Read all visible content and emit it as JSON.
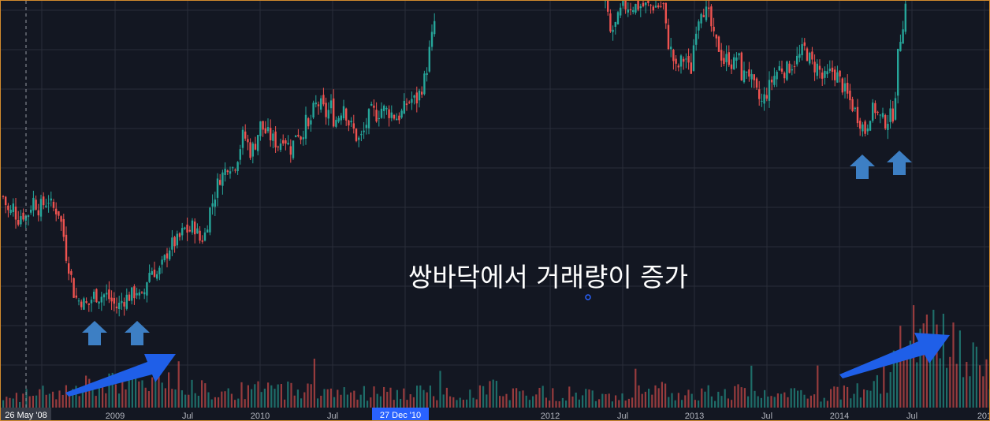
{
  "colors": {
    "background": "#131722",
    "grid": "#2a2e39",
    "up": "#26a69a",
    "down": "#ef5350",
    "arrow_blue": "#3d7fc4",
    "trend_arrow": "#1f5fe8",
    "crosshair_label": "#2962ff",
    "border": "#d28a2e"
  },
  "annotation": {
    "text": "쌍바닥에서 거래량이 증가"
  },
  "crosshair": {
    "date_label": "27 Dec '10",
    "cursor_icon": "crosshair-cursor-icon"
  },
  "start_label": {
    "text": "26 May '08"
  },
  "icons": [
    "up-arrow-icon",
    "trend-arrow-icon"
  ],
  "chart_data": {
    "type": "candlestick",
    "title": "",
    "xlabel": "",
    "ylabel": "",
    "grid": true,
    "legend": "none",
    "x_tick_labels": [
      "2009",
      "Jul",
      "2010",
      "Jul",
      "2012",
      "Jul",
      "2013",
      "Jul",
      "2014",
      "Jul",
      "201"
    ],
    "x_start": "2008-05",
    "x_end": "2015-01",
    "close_path_weekly": [
      [
        0,
        48
      ],
      [
        8,
        40
      ],
      [
        13,
        44
      ],
      [
        18,
        38
      ],
      [
        24,
        41
      ],
      [
        30,
        39
      ],
      [
        38,
        47
      ],
      [
        45,
        43
      ],
      [
        52,
        45
      ],
      [
        58,
        47
      ],
      [
        62,
        43
      ],
      [
        70,
        42
      ],
      [
        76,
        33
      ],
      [
        80,
        23
      ],
      [
        86,
        14
      ],
      [
        90,
        6
      ],
      [
        95,
        3
      ],
      [
        98,
        4
      ],
      [
        103,
        2
      ],
      [
        108,
        1
      ],
      [
        112,
        4
      ],
      [
        116,
        6
      ],
      [
        122,
        5
      ],
      [
        130,
        6
      ],
      [
        135,
        4
      ],
      [
        140,
        2
      ],
      [
        145,
        0
      ],
      [
        150,
        3
      ],
      [
        158,
        5
      ],
      [
        165,
        6
      ],
      [
        170,
        8
      ],
      [
        174,
        3
      ],
      [
        178,
        5
      ],
      [
        184,
        15
      ],
      [
        190,
        17
      ],
      [
        196,
        14
      ],
      [
        204,
        20
      ],
      [
        210,
        26
      ],
      [
        216,
        28
      ],
      [
        222,
        29
      ],
      [
        230,
        34
      ],
      [
        236,
        33
      ],
      [
        242,
        36
      ],
      [
        250,
        29
      ],
      [
        256,
        32
      ],
      [
        262,
        42
      ],
      [
        268,
        48
      ],
      [
        274,
        56
      ],
      [
        280,
        58
      ],
      [
        286,
        63
      ],
      [
        292,
        60
      ],
      [
        298,
        66
      ],
      [
        304,
        74
      ],
      [
        308,
        73
      ],
      [
        314,
        67
      ],
      [
        320,
        71
      ],
      [
        326,
        79
      ],
      [
        332,
        76
      ],
      [
        338,
        74
      ],
      [
        344,
        72
      ],
      [
        350,
        70
      ],
      [
        356,
        75
      ],
      [
        360,
        71
      ],
      [
        366,
        68
      ],
      [
        372,
        77
      ],
      [
        378,
        74
      ],
      [
        384,
        80
      ],
      [
        388,
        76
      ],
      [
        392,
        84
      ],
      [
        398,
        88
      ],
      [
        404,
        87
      ],
      [
        410,
        83
      ],
      [
        416,
        87
      ],
      [
        420,
        80
      ],
      [
        426,
        83
      ],
      [
        432,
        88
      ],
      [
        438,
        80
      ],
      [
        444,
        77
      ],
      [
        450,
        72
      ],
      [
        456,
        74
      ],
      [
        462,
        81
      ],
      [
        468,
        85
      ],
      [
        474,
        83
      ],
      [
        480,
        86
      ],
      [
        486,
        85
      ],
      [
        492,
        84
      ],
      [
        500,
        82
      ],
      [
        506,
        84
      ],
      [
        512,
        88
      ],
      [
        518,
        90
      ],
      [
        524,
        89
      ],
      [
        530,
        94
      ],
      [
        536,
        100
      ],
      [
        540,
        109
      ],
      [
        546,
        120
      ],
      [
        550,
        130
      ]
    ],
    "close_path_weekly_end": [
      [
        764,
        132
      ],
      [
        770,
        118
      ],
      [
        778,
        122
      ],
      [
        786,
        130
      ],
      [
        838,
        130
      ],
      [
        842,
        116
      ],
      [
        848,
        110
      ],
      [
        854,
        102
      ],
      [
        860,
        106
      ],
      [
        866,
        108
      ],
      [
        872,
        100
      ],
      [
        878,
        120
      ],
      [
        886,
        130
      ],
      [
        896,
        125
      ],
      [
        902,
        115
      ],
      [
        908,
        112
      ],
      [
        914,
        106
      ],
      [
        920,
        108
      ],
      [
        926,
        104
      ],
      [
        932,
        110
      ],
      [
        938,
        98
      ],
      [
        944,
        104
      ],
      [
        950,
        97
      ],
      [
        956,
        92
      ],
      [
        962,
        88
      ],
      [
        968,
        92
      ],
      [
        974,
        97
      ],
      [
        980,
        101
      ],
      [
        986,
        104
      ],
      [
        992,
        102
      ],
      [
        998,
        104
      ],
      [
        1004,
        106
      ],
      [
        1010,
        108
      ],
      [
        1016,
        112
      ],
      [
        1022,
        108
      ],
      [
        1028,
        104
      ],
      [
        1034,
        104
      ],
      [
        1040,
        98
      ],
      [
        1046,
        100
      ],
      [
        1052,
        102
      ],
      [
        1058,
        100
      ],
      [
        1064,
        96
      ],
      [
        1070,
        92
      ],
      [
        1076,
        88
      ],
      [
        1082,
        84
      ],
      [
        1088,
        80
      ],
      [
        1094,
        76
      ],
      [
        1100,
        84
      ],
      [
        1106,
        86
      ],
      [
        1112,
        82
      ],
      [
        1118,
        80
      ],
      [
        1124,
        82
      ],
      [
        1130,
        84
      ],
      [
        1136,
        112
      ],
      [
        1140,
        120
      ],
      [
        1144,
        128
      ],
      [
        1148,
        140
      ]
    ],
    "volume_profile": [
      [
        0,
        18
      ],
      [
        40,
        20
      ],
      [
        80,
        28
      ],
      [
        120,
        35
      ],
      [
        160,
        40
      ],
      [
        200,
        45
      ],
      [
        220,
        50
      ],
      [
        260,
        28
      ],
      [
        300,
        26
      ],
      [
        340,
        28
      ],
      [
        380,
        30
      ],
      [
        420,
        25
      ],
      [
        460,
        24
      ],
      [
        500,
        22
      ],
      [
        540,
        24
      ],
      [
        580,
        22
      ],
      [
        620,
        30
      ],
      [
        660,
        24
      ],
      [
        700,
        22
      ],
      [
        740,
        22
      ],
      [
        780,
        22
      ],
      [
        820,
        24
      ],
      [
        860,
        26
      ],
      [
        900,
        24
      ],
      [
        940,
        24
      ],
      [
        980,
        20
      ],
      [
        1020,
        20
      ],
      [
        1060,
        22
      ],
      [
        1100,
        30
      ],
      [
        1130,
        60
      ],
      [
        1140,
        90
      ],
      [
        1160,
        110
      ],
      [
        1180,
        100
      ],
      [
        1200,
        95
      ],
      [
        1220,
        80
      ],
      [
        1250,
        70
      ]
    ]
  }
}
